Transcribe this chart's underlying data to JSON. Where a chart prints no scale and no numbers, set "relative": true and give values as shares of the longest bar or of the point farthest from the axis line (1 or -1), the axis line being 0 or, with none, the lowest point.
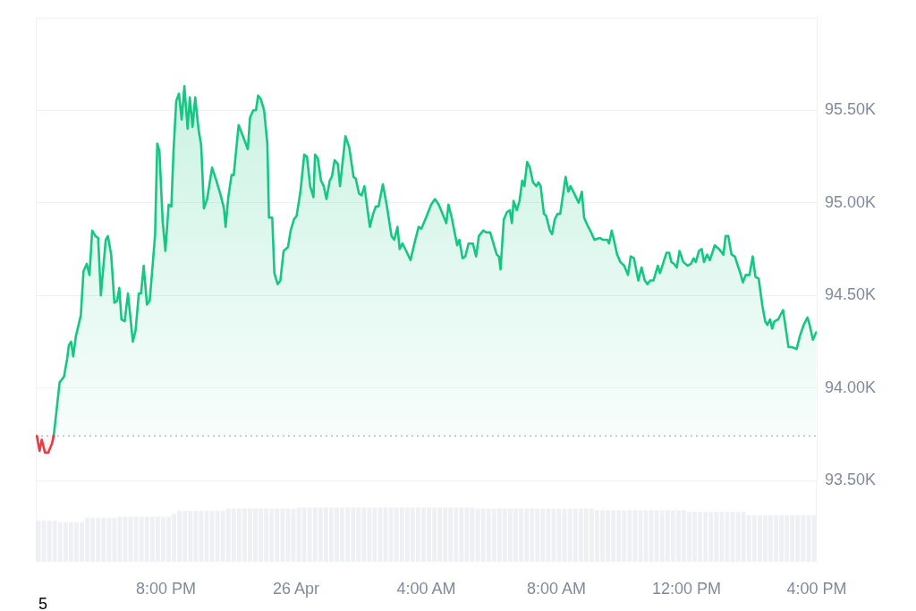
{
  "chart_data": [
    {
      "type": "area",
      "series": [
        {
          "color": "#ea3943",
          "x": [
            "--04-25T16:02",
            "--04-25T16:07",
            "--04-25T16:11",
            "--04-25T16:17",
            "--04-25T16:23",
            "--04-25T16:30",
            "--04-25T16:33"
          ],
          "values": [
            93740,
            93660,
            93720,
            93650,
            93650,
            93700,
            93740
          ]
        },
        {
          "color": "#16c784",
          "x": [
            "--04-25T16:33",
            "--04-25T16:38",
            "--04-25T16:44",
            "--04-25T16:52",
            "--04-25T16:58",
            "--04-25T17:01",
            "--04-25T17:05",
            "--04-25T17:09",
            "--04-25T17:14",
            "--04-25T17:23",
            "--04-25T17:28",
            "--04-25T17:34",
            "--04-25T17:39",
            "--04-25T17:44",
            "--04-25T17:50",
            "--04-25T17:55",
            "--04-25T18:00",
            "--04-25T18:09",
            "--04-25T18:13",
            "--04-25T18:19",
            "--04-25T18:25",
            "--04-25T18:30",
            "--04-25T18:34",
            "--04-25T18:38",
            "--04-25T18:44",
            "--04-25T18:50",
            "--04-25T18:59",
            "--04-25T19:04",
            "--04-25T19:10",
            "--04-25T19:14",
            "--04-25T19:19",
            "--04-25T19:25",
            "--04-25T19:30",
            "--04-25T19:36",
            "--04-25T19:40",
            "--04-25T19:44",
            "--04-25T19:48",
            "--04-25T19:54",
            "--04-25T19:59",
            "--04-25T20:05",
            "--04-25T20:10",
            "--04-25T20:14",
            "--04-25T20:19",
            "--04-25T20:24",
            "--04-25T20:29",
            "--04-25T20:34",
            "--04-25T20:40",
            "--04-25T20:44",
            "--04-25T20:49",
            "--04-25T20:54",
            "--04-25T21:00",
            "--04-25T21:05",
            "--04-25T21:10",
            "--04-25T21:16",
            "--04-25T21:25",
            "--04-25T21:33",
            "--04-25T21:41",
            "--04-25T21:47",
            "--04-25T21:50",
            "--04-25T21:55",
            "--04-25T22:01",
            "--04-25T22:05",
            "--04-25T22:14",
            "--04-25T22:22",
            "--04-25T22:31",
            "--04-25T22:35",
            "--04-25T22:41",
            "--04-25T22:46",
            "--04-25T22:50",
            "--04-25T22:55",
            "--04-25T23:01",
            "--04-25T23:07",
            "--04-25T23:10",
            "--04-25T23:16",
            "--04-25T23:20",
            "--04-25T23:26",
            "--04-25T23:31",
            "--04-25T23:37",
            "--04-25T23:45",
            "--04-25T23:50",
            "--04-25T23:56",
            "--04-26T00:01",
            "--04-26T00:08",
            "--04-26T00:15",
            "--04-26T00:20",
            "--04-26T00:26",
            "--04-26T00:32",
            "--04-26T00:35",
            "--04-26T00:40",
            "--04-26T00:46",
            "--04-26T00:51",
            "--04-26T00:56",
            "--04-26T01:02",
            "--04-26T01:06",
            "--04-26T01:11",
            "--04-26T01:17",
            "--04-26T01:21",
            "--04-26T01:31",
            "--04-26T01:38",
            "--04-26T01:46",
            "--04-26T01:50",
            "--04-26T01:56",
            "--04-26T02:01",
            "--04-26T02:06",
            "--04-26T02:16",
            "--04-26T02:22",
            "--04-26T02:27",
            "--04-26T02:32",
            "--04-26T02:40",
            "--04-26T02:47",
            "--04-26T02:56",
            "--04-26T03:01",
            "--04-26T03:07",
            "--04-26T03:11",
            "--04-26T03:16",
            "--04-26T03:23",
            "--04-26T03:31",
            "--04-26T03:39",
            "--04-26T03:46",
            "--04-26T03:51",
            "--04-26T04:01",
            "--04-26T04:09",
            "--04-26T04:16",
            "--04-26T04:23",
            "--04-26T04:30",
            "--04-26T04:37",
            "--04-26T04:41",
            "--04-26T04:47",
            "--04-26T04:57",
            "--04-26T05:01",
            "--04-26T05:07",
            "--04-26T05:12",
            "--04-26T05:18",
            "--04-26T05:26",
            "--04-26T05:32",
            "--04-26T05:37",
            "--04-26T05:45",
            "--04-26T05:51",
            "--04-26T05:58",
            "--04-26T06:05",
            "--04-26T06:10",
            "--04-26T06:14",
            "--04-26T06:17",
            "--04-26T06:23",
            "--04-26T06:29",
            "--04-26T06:34",
            "--04-26T06:38",
            "--04-26T06:41",
            "--04-26T06:47",
            "--04-26T06:52",
            "--04-26T06:57",
            "--04-26T07:01",
            "--04-26T07:06",
            "--04-26T07:11",
            "--04-26T07:17",
            "--04-26T07:23",
            "--04-26T07:27",
            "--04-26T07:31",
            "--04-26T07:37",
            "--04-26T07:41",
            "--04-26T07:48",
            "--04-26T07:52",
            "--04-26T07:57",
            "--04-26T08:02",
            "--04-26T08:07",
            "--04-26T08:12",
            "--04-26T08:17",
            "--04-26T08:22",
            "--04-26T08:26",
            "--04-26T08:33",
            "--04-26T08:41",
            "--04-26T08:47",
            "--04-26T08:51",
            "--04-26T08:57",
            "--04-26T09:04",
            "--04-26T09:10",
            "--04-26T09:20",
            "--04-26T09:26",
            "--04-26T09:34",
            "--04-26T09:37",
            "--04-26T09:42",
            "--04-26T09:46",
            "--04-26T09:52",
            "--04-26T09:58",
            "--04-26T10:05",
            "--04-26T10:12",
            "--04-26T10:17",
            "--04-26T10:23",
            "--04-26T10:31",
            "--04-26T10:37",
            "--04-26T10:43",
            "--04-26T10:48",
            "--04-26T10:53",
            "--04-26T10:59",
            "--04-26T11:07",
            "--04-26T11:11",
            "--04-26T11:23",
            "--04-26T11:28",
            "--04-26T11:32",
            "--04-26T11:37",
            "--04-26T11:42",
            "--04-26T11:47",
            "--04-26T11:54",
            "--04-26T12:02",
            "--04-26T12:08",
            "--04-26T12:13",
            "--04-26T12:17",
            "--04-26T12:23",
            "--04-26T12:28",
            "--04-26T12:32",
            "--04-26T12:38",
            "--04-26T12:43",
            "--04-26T12:52",
            "--04-26T13:00",
            "--04-26T13:08",
            "--04-26T13:12",
            "--04-26T13:17",
            "--04-26T13:23",
            "--04-26T13:29",
            "--04-26T13:38",
            "--04-26T13:44",
            "--04-26T13:49",
            "--04-26T13:56",
            "--04-26T14:02",
            "--04-26T14:07",
            "--04-26T14:13",
            "--04-26T14:20",
            "--04-26T14:25",
            "--04-26T14:29",
            "--04-26T14:34",
            "--04-26T14:38",
            "--04-26T14:42",
            "--04-26T14:49",
            "--04-26T14:58",
            "--04-26T15:08",
            "--04-26T15:14",
            "--04-26T15:23",
            "--04-26T15:29",
            "--04-26T15:36",
            "--04-26T15:43",
            "--04-26T15:47",
            "--04-26T15:53",
            "--04-26T15:59"
          ],
          "values": [
            93740,
            93870,
            94030,
            94060,
            94160,
            94230,
            94250,
            94170,
            94280,
            94390,
            94630,
            94670,
            94610,
            94850,
            94820,
            94810,
            94500,
            94800,
            94820,
            94720,
            94460,
            94470,
            94540,
            94370,
            94360,
            94510,
            94250,
            94310,
            94510,
            94510,
            94660,
            94450,
            94470,
            94680,
            94830,
            95320,
            95280,
            94900,
            94740,
            94990,
            94980,
            95280,
            95550,
            95590,
            95450,
            95630,
            95400,
            95570,
            95410,
            95570,
            95400,
            95310,
            94970,
            95020,
            95190,
            95120,
            95040,
            94970,
            94870,
            95030,
            95150,
            95150,
            95420,
            95360,
            95290,
            95460,
            95500,
            95500,
            95580,
            95560,
            95500,
            95320,
            94920,
            94920,
            94620,
            94560,
            94580,
            94740,
            94760,
            94850,
            94910,
            94930,
            95060,
            95260,
            95250,
            95090,
            95030,
            95260,
            95240,
            95120,
            95090,
            95020,
            95120,
            95140,
            95230,
            95210,
            95090,
            95360,
            95300,
            95140,
            95130,
            95050,
            95040,
            95090,
            94870,
            94940,
            94980,
            94980,
            95100,
            94990,
            94820,
            94800,
            94870,
            94750,
            94780,
            94740,
            94690,
            94790,
            94870,
            94860,
            94930,
            94990,
            95020,
            94990,
            94940,
            94890,
            94990,
            94920,
            94770,
            94800,
            94700,
            94710,
            94780,
            94780,
            94710,
            94820,
            94850,
            94840,
            94840,
            94770,
            94720,
            94710,
            94640,
            94910,
            94950,
            94960,
            94890,
            95010,
            94960,
            95010,
            95120,
            95090,
            95220,
            95190,
            95110,
            95090,
            95110,
            95090,
            94940,
            94930,
            94850,
            94830,
            94910,
            94940,
            94940,
            95040,
            95140,
            95060,
            95090,
            95050,
            95000,
            95060,
            94920,
            94880,
            94840,
            94800,
            94810,
            94800,
            94800,
            94780,
            94850,
            94800,
            94720,
            94680,
            94660,
            94610,
            94710,
            94700,
            94580,
            94650,
            94580,
            94560,
            94580,
            94580,
            94660,
            94620,
            94730,
            94730,
            94680,
            94670,
            94650,
            94740,
            94680,
            94660,
            94670,
            94700,
            94680,
            94740,
            94750,
            94680,
            94720,
            94690,
            94770,
            94750,
            94720,
            94820,
            94820,
            94720,
            94710,
            94630,
            94570,
            94610,
            94610,
            94710,
            94600,
            94590,
            94440,
            94360,
            94340,
            94370,
            94320,
            94360,
            94370,
            94420,
            94220,
            94220,
            94210,
            94280,
            94340,
            94380,
            94340,
            94260,
            94300
          ]
        }
      ],
      "xlim": [
        "--04-25T16:00",
        "--04-26T16:00"
      ],
      "ylim": [
        93500,
        96000
      ],
      "yticks": [
        {
          "value": 93500,
          "label": "93.50K"
        },
        {
          "value": 94000,
          "label": "94.00K"
        },
        {
          "value": 94500,
          "label": "94.50K"
        },
        {
          "value": 95000,
          "label": "95.00K"
        },
        {
          "value": 95500,
          "label": "95.50K"
        }
      ],
      "grid": "y",
      "tick_labels": "y",
      "ref_lines": [
        {
          "axis": "y",
          "value": 93740,
          "color": "#a6b0c3",
          "line_style": "dotted"
        }
      ]
    },
    {
      "type": "bar",
      "relative": true,
      "color": "#eef0f3",
      "x": [
        "--04-25T16:05",
        "--04-25T16:15",
        "--04-25T16:25",
        "--04-25T16:35",
        "--04-25T16:45",
        "--04-25T16:55",
        "--04-25T17:05",
        "--04-25T17:15",
        "--04-25T17:25",
        "--04-25T17:35",
        "--04-25T17:45",
        "--04-25T17:55",
        "--04-25T18:05",
        "--04-25T18:15",
        "--04-25T18:25",
        "--04-25T18:35",
        "--04-25T18:45",
        "--04-25T18:55",
        "--04-25T19:05",
        "--04-25T19:15",
        "--04-25T19:25",
        "--04-25T19:35",
        "--04-25T19:45",
        "--04-25T19:55",
        "--04-25T20:05",
        "--04-25T20:15",
        "--04-25T20:25",
        "--04-25T20:35",
        "--04-25T20:45",
        "--04-25T20:55",
        "--04-25T21:05",
        "--04-25T21:15",
        "--04-25T21:25",
        "--04-25T21:35",
        "--04-25T21:45",
        "--04-25T21:55",
        "--04-25T22:05",
        "--04-25T22:15",
        "--04-25T22:25",
        "--04-25T22:35",
        "--04-25T22:45",
        "--04-25T22:55",
        "--04-25T23:05",
        "--04-25T23:15",
        "--04-25T23:25",
        "--04-25T23:35",
        "--04-25T23:45",
        "--04-25T23:55",
        "--04-26T00:05",
        "--04-26T00:15",
        "--04-26T00:25",
        "--04-26T00:35",
        "--04-26T00:45",
        "--04-26T00:55",
        "--04-26T01:05",
        "--04-26T01:15",
        "--04-26T01:25",
        "--04-26T01:35",
        "--04-26T01:45",
        "--04-26T01:55",
        "--04-26T02:05",
        "--04-26T02:15",
        "--04-26T02:25",
        "--04-26T02:35",
        "--04-26T02:45",
        "--04-26T02:55",
        "--04-26T03:05",
        "--04-26T03:15",
        "--04-26T03:25",
        "--04-26T03:35",
        "--04-26T03:45",
        "--04-26T03:55",
        "--04-26T04:05",
        "--04-26T04:15",
        "--04-26T04:25",
        "--04-26T04:35",
        "--04-26T04:45",
        "--04-26T04:55",
        "--04-26T05:05",
        "--04-26T05:15",
        "--04-26T05:25",
        "--04-26T05:35",
        "--04-26T05:45",
        "--04-26T05:55",
        "--04-26T06:05",
        "--04-26T06:15",
        "--04-26T06:25",
        "--04-26T06:35",
        "--04-26T06:45",
        "--04-26T06:55",
        "--04-26T07:05",
        "--04-26T07:15",
        "--04-26T07:25",
        "--04-26T07:35",
        "--04-26T07:45",
        "--04-26T07:55",
        "--04-26T08:05",
        "--04-26T08:15",
        "--04-26T08:25",
        "--04-26T08:35",
        "--04-26T08:45",
        "--04-26T08:55",
        "--04-26T09:05",
        "--04-26T09:15",
        "--04-26T09:25",
        "--04-26T09:35",
        "--04-26T09:45",
        "--04-26T09:55",
        "--04-26T10:05",
        "--04-26T10:15",
        "--04-26T10:25",
        "--04-26T10:35",
        "--04-26T10:45",
        "--04-26T10:55",
        "--04-26T11:05",
        "--04-26T11:15",
        "--04-26T11:25",
        "--04-26T11:35",
        "--04-26T11:45",
        "--04-26T11:55",
        "--04-26T12:05",
        "--04-26T12:15",
        "--04-26T12:25",
        "--04-26T12:35",
        "--04-26T12:45",
        "--04-26T12:55",
        "--04-26T13:05",
        "--04-26T13:15",
        "--04-26T13:25",
        "--04-26T13:35",
        "--04-26T13:45",
        "--04-26T13:55",
        "--04-26T14:05",
        "--04-26T14:15",
        "--04-26T14:25",
        "--04-26T14:35",
        "--04-26T14:45",
        "--04-26T14:55",
        "--04-26T15:05",
        "--04-26T15:15",
        "--04-26T15:25",
        "--04-26T15:35",
        "--04-26T15:45",
        "--04-26T15:55"
      ],
      "values": [
        0.76,
        0.76,
        0.76,
        0.76,
        0.73,
        0.73,
        0.73,
        0.73,
        0.73,
        0.81,
        0.81,
        0.81,
        0.81,
        0.81,
        0.81,
        0.83,
        0.83,
        0.83,
        0.83,
        0.83,
        0.83,
        0.83,
        0.83,
        0.83,
        0.83,
        0.88,
        0.94,
        0.94,
        0.94,
        0.94,
        0.94,
        0.94,
        0.94,
        0.94,
        0.94,
        0.98,
        0.98,
        0.98,
        0.98,
        0.98,
        0.98,
        0.98,
        0.98,
        0.98,
        0.98,
        0.98,
        0.98,
        0.98,
        1,
        1,
        1,
        1,
        1,
        1,
        1,
        1,
        1,
        1,
        1,
        1,
        1,
        1,
        1,
        1,
        1,
        1,
        1,
        1,
        1,
        1,
        1,
        1,
        1,
        1,
        1,
        1,
        1,
        1,
        1,
        1,
        1,
        0.98,
        0.98,
        0.98,
        0.98,
        0.98,
        0.98,
        0.98,
        0.98,
        0.98,
        0.98,
        0.98,
        0.98,
        0.98,
        0.98,
        0.98,
        0.98,
        0.98,
        0.98,
        0.98,
        0.98,
        0.98,
        0.98,
        0.95,
        0.95,
        0.95,
        0.95,
        0.95,
        0.95,
        0.95,
        0.95,
        0.95,
        0.95,
        0.95,
        0.95,
        0.95,
        0.95,
        0.95,
        0.95,
        0.95,
        0.92,
        0.92,
        0.92,
        0.92,
        0.92,
        0.92,
        0.92,
        0.92,
        0.92,
        0.92,
        0.92,
        0.86,
        0.86,
        0.86,
        0.86,
        0.86,
        0.86,
        0.86,
        0.86,
        0.86,
        0.86,
        0.86,
        0.86,
        0.86
      ],
      "xlim": [
        "--04-25T16:00",
        "--04-26T16:00"
      ],
      "xticks": [
        {
          "value": "--04-25T20:00",
          "label": "8:00 PM"
        },
        {
          "value": "--04-26T00:00",
          "label": "26 Apr"
        },
        {
          "value": "--04-26T04:00",
          "label": "4:00 AM"
        },
        {
          "value": "--04-26T08:00",
          "label": "8:00 AM"
        },
        {
          "value": "--04-26T12:00",
          "label": "12:00 PM"
        },
        {
          "value": "--04-26T16:00",
          "label": "4:00 PM"
        }
      ],
      "tick_labels": "x",
      "annotations": [
        "5"
      ]
    }
  ]
}
